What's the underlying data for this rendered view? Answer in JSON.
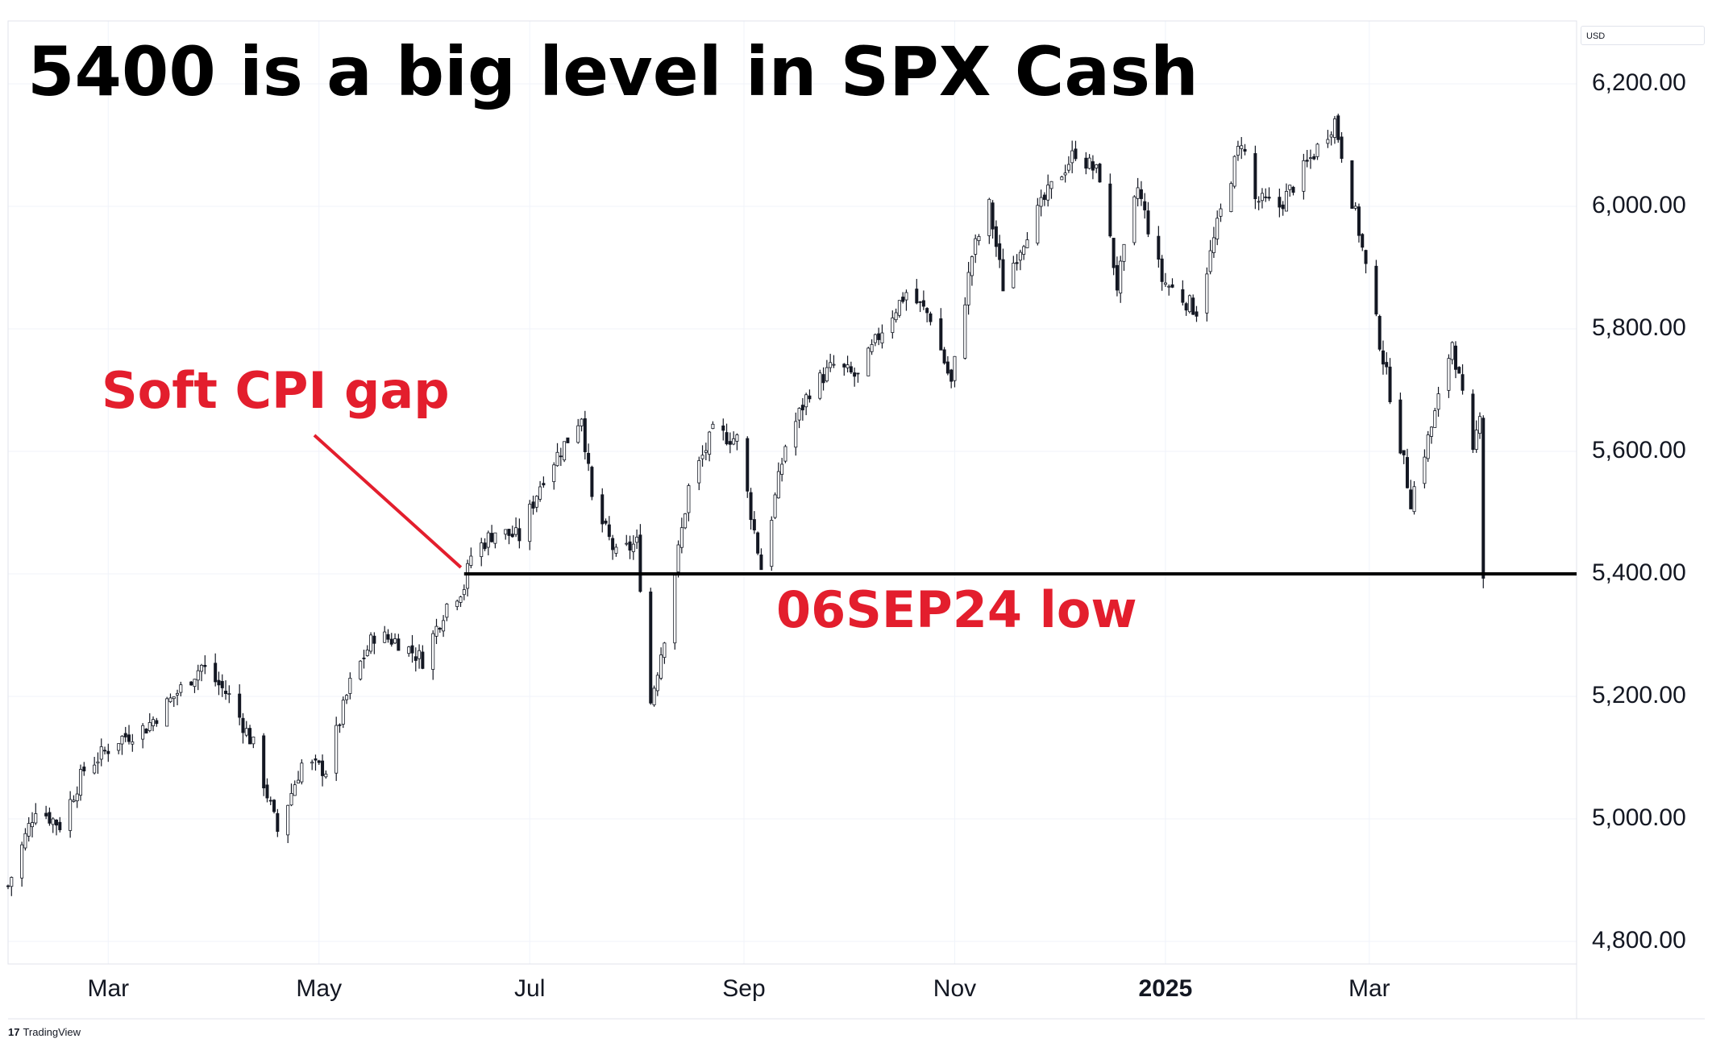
{
  "chart_data": {
    "type": "candlestick",
    "title": "5400 is a big level in SPX Cash",
    "currency": "USD",
    "ylim": [
      4760,
      6300
    ],
    "y_ticks": [
      "6,200.00",
      "6,000.00",
      "5,800.00",
      "5,600.00",
      "5,400.00",
      "5,200.00",
      "5,000.00",
      "4,800.00"
    ],
    "x_ticks": [
      {
        "label": "Mar",
        "bold": false
      },
      {
        "label": "May",
        "bold": false
      },
      {
        "label": "Jul",
        "bold": false
      },
      {
        "label": "Sep",
        "bold": false
      },
      {
        "label": "Nov",
        "bold": false
      },
      {
        "label": "2025",
        "bold": true
      },
      {
        "label": "Mar",
        "bold": false
      }
    ],
    "x_tick_dates": [
      "2024-03-01",
      "2024-05-01",
      "2024-07-01",
      "2024-09-01",
      "2024-11-01",
      "2025-01-01",
      "2025-03-01"
    ],
    "x_range": [
      "2024-02-01",
      "2025-04-30"
    ],
    "price_path": [
      [
        "2024-02-01",
        4890
      ],
      [
        "2024-02-09",
        5020
      ],
      [
        "2024-02-16",
        4990
      ],
      [
        "2024-02-23",
        5080
      ],
      [
        "2024-03-04",
        5130
      ],
      [
        "2024-03-12",
        5150
      ],
      [
        "2024-03-20",
        5200
      ],
      [
        "2024-03-28",
        5250
      ],
      [
        "2024-04-05",
        5200
      ],
      [
        "2024-04-12",
        5120
      ],
      [
        "2024-04-19",
        4980
      ],
      [
        "2024-04-26",
        5090
      ],
      [
        "2024-05-03",
        5080
      ],
      [
        "2024-05-10",
        5220
      ],
      [
        "2024-05-17",
        5300
      ],
      [
        "2024-05-24",
        5290
      ],
      [
        "2024-05-31",
        5260
      ],
      [
        "2024-06-07",
        5350
      ],
      [
        "2024-06-12",
        5380
      ],
      [
        "2024-06-14",
        5430
      ],
      [
        "2024-06-21",
        5470
      ],
      [
        "2024-06-28",
        5460
      ],
      [
        "2024-07-05",
        5560
      ],
      [
        "2024-07-12",
        5620
      ],
      [
        "2024-07-16",
        5660
      ],
      [
        "2024-07-19",
        5520
      ],
      [
        "2024-07-26",
        5430
      ],
      [
        "2024-08-01",
        5450
      ],
      [
        "2024-08-05",
        5190
      ],
      [
        "2024-08-09",
        5300
      ],
      [
        "2024-08-16",
        5540
      ],
      [
        "2024-08-23",
        5630
      ],
      [
        "2024-08-30",
        5620
      ],
      [
        "2024-09-06",
        5410
      ],
      [
        "2024-09-13",
        5610
      ],
      [
        "2024-09-20",
        5700
      ],
      [
        "2024-09-27",
        5740
      ],
      [
        "2024-10-04",
        5720
      ],
      [
        "2024-10-11",
        5800
      ],
      [
        "2024-10-18",
        5860
      ],
      [
        "2024-10-25",
        5820
      ],
      [
        "2024-10-31",
        5710
      ],
      [
        "2024-11-06",
        5920
      ],
      [
        "2024-11-11",
        6000
      ],
      [
        "2024-11-15",
        5870
      ],
      [
        "2024-11-22",
        5960
      ],
      [
        "2024-11-29",
        6030
      ],
      [
        "2024-12-06",
        6090
      ],
      [
        "2024-12-13",
        6050
      ],
      [
        "2024-12-18",
        5870
      ],
      [
        "2024-12-24",
        6030
      ],
      [
        "2024-12-31",
        5880
      ],
      [
        "2025-01-10",
        5830
      ],
      [
        "2025-01-17",
        5990
      ],
      [
        "2025-01-23",
        6110
      ],
      [
        "2025-01-27",
        6010
      ],
      [
        "2025-02-03",
        6000
      ],
      [
        "2025-02-10",
        6060
      ],
      [
        "2025-02-19",
        6140
      ],
      [
        "2025-02-26",
        5960
      ],
      [
        "2025-03-04",
        5780
      ],
      [
        "2025-03-10",
        5610
      ],
      [
        "2025-03-13",
        5520
      ],
      [
        "2025-03-20",
        5660
      ],
      [
        "2025-03-25",
        5780
      ],
      [
        "2025-03-31",
        5590
      ],
      [
        "2025-04-02",
        5670
      ],
      [
        "2025-04-03",
        5400
      ]
    ],
    "support_line": {
      "value": 5400,
      "start": "2024-06-12",
      "end": "2025-04-30"
    },
    "annotations": [
      {
        "text": "Soft CPI gap",
        "color": "#e31e2d",
        "points_to": [
          "2024-06-12",
          5400
        ]
      },
      {
        "text": "06SEP24 low",
        "color": "#e31e2d"
      }
    ],
    "grid": true,
    "colors": {
      "candle_body": "#ffffff",
      "candle_outline": "#131722",
      "support_line": "#000000",
      "annotation": "#e31e2d",
      "grid": "#f0f3fa"
    }
  },
  "footer": {
    "brand": "TradingView",
    "brand_icon": "tradingview-logo"
  }
}
